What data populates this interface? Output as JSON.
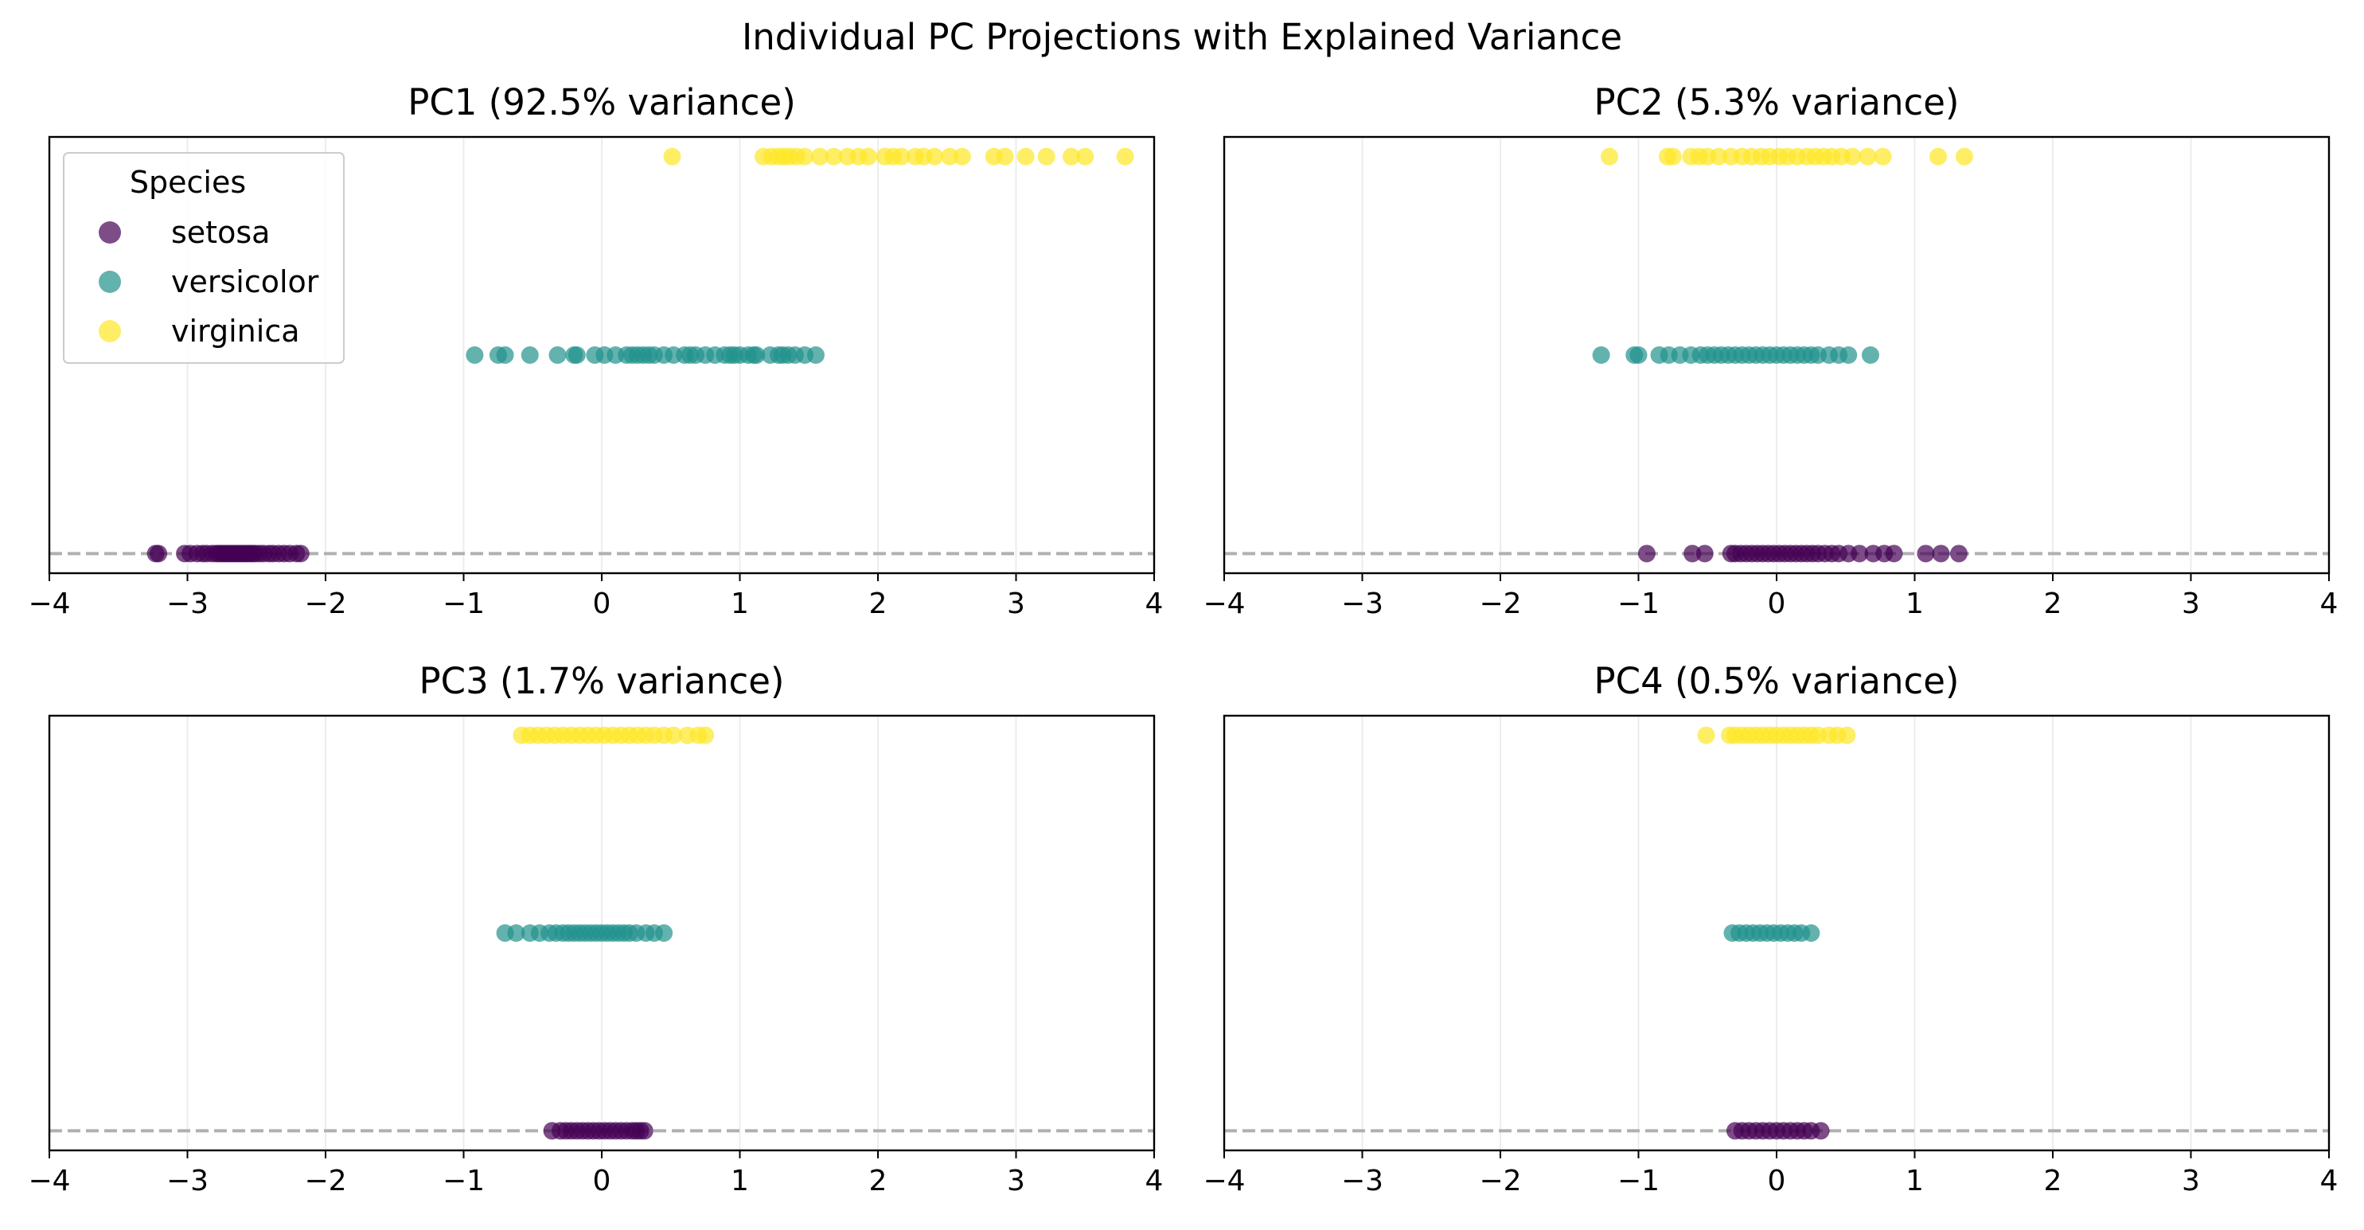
{
  "chart_data": {
    "suptitle": "Individual PC Projections with Explained Variance",
    "legend": {
      "title": "Species",
      "placement": "upper-left of first panel",
      "entries": [
        {
          "label": "setosa",
          "color": "#440154"
        },
        {
          "label": "versicolor",
          "color": "#21918c"
        },
        {
          "label": "virginica",
          "color": "#fde725"
        }
      ]
    },
    "panels": [
      {
        "type": "scatter",
        "title": "PC1 (92.5% variance)",
        "xlim": [
          -4,
          4
        ],
        "xticks": [
          -4,
          -3,
          -2,
          -1,
          0,
          1,
          2,
          3,
          4
        ],
        "grid": "vertical",
        "reference_line": "dashed horizontal line at setosa level",
        "series": [
          {
            "name": "setosa",
            "y": 0,
            "x": [
              -3.23,
              -3.21,
              -3.02,
              -2.98,
              -2.93,
              -2.89,
              -2.86,
              -2.82,
              -2.79,
              -2.77,
              -2.75,
              -2.73,
              -2.71,
              -2.69,
              -2.67,
              -2.65,
              -2.63,
              -2.61,
              -2.59,
              -2.57,
              -2.55,
              -2.53,
              -2.51,
              -2.48,
              -2.45,
              -2.41,
              -2.38,
              -2.34,
              -2.3,
              -2.26,
              -2.21,
              -2.18
            ]
          },
          {
            "name": "versicolor",
            "y": 1,
            "x": [
              -0.92,
              -0.75,
              -0.7,
              -0.52,
              -0.32,
              -0.2,
              -0.18,
              -0.05,
              0.02,
              0.1,
              0.18,
              0.22,
              0.26,
              0.3,
              0.34,
              0.38,
              0.45,
              0.52,
              0.6,
              0.64,
              0.68,
              0.75,
              0.82,
              0.89,
              0.93,
              0.96,
              1.0,
              1.06,
              1.1,
              1.12,
              1.22,
              1.28,
              1.31,
              1.35,
              1.4,
              1.47,
              1.55
            ]
          },
          {
            "name": "virginica",
            "y": 2,
            "x": [
              0.51,
              1.17,
              1.23,
              1.28,
              1.32,
              1.36,
              1.41,
              1.47,
              1.58,
              1.68,
              1.78,
              1.86,
              1.93,
              2.05,
              2.11,
              2.17,
              2.27,
              2.33,
              2.41,
              2.52,
              2.61,
              2.84,
              2.92,
              3.07,
              3.22,
              3.4,
              3.5,
              3.79
            ]
          }
        ]
      },
      {
        "type": "scatter",
        "title": "PC2 (5.3% variance)",
        "xlim": [
          -4,
          4
        ],
        "xticks": [
          -4,
          -3,
          -2,
          -1,
          0,
          1,
          2,
          3,
          4
        ],
        "grid": "vertical",
        "reference_line": "dashed horizontal line at setosa level",
        "series": [
          {
            "name": "setosa",
            "y": 0,
            "x": [
              -0.94,
              -0.61,
              -0.52,
              -0.33,
              -0.3,
              -0.26,
              -0.22,
              -0.18,
              -0.14,
              -0.1,
              -0.06,
              -0.02,
              0.02,
              0.06,
              0.1,
              0.14,
              0.18,
              0.22,
              0.26,
              0.3,
              0.35,
              0.4,
              0.45,
              0.52,
              0.6,
              0.7,
              0.78,
              0.85,
              1.08,
              1.19,
              1.32
            ]
          },
          {
            "name": "versicolor",
            "y": 1,
            "x": [
              -1.27,
              -1.03,
              -1.0,
              -0.85,
              -0.78,
              -0.7,
              -0.62,
              -0.55,
              -0.5,
              -0.45,
              -0.4,
              -0.35,
              -0.3,
              -0.25,
              -0.2,
              -0.15,
              -0.1,
              -0.05,
              0.0,
              0.05,
              0.1,
              0.15,
              0.2,
              0.25,
              0.3,
              0.38,
              0.45,
              0.52,
              0.68
            ]
          },
          {
            "name": "virginica",
            "y": 2,
            "x": [
              -1.21,
              -0.79,
              -0.75,
              -0.62,
              -0.56,
              -0.5,
              -0.42,
              -0.33,
              -0.25,
              -0.18,
              -0.11,
              -0.05,
              0.02,
              0.08,
              0.15,
              0.22,
              0.28,
              0.34,
              0.4,
              0.47,
              0.55,
              0.66,
              0.77,
              1.17,
              1.36
            ]
          }
        ]
      },
      {
        "type": "scatter",
        "title": "PC3 (1.7% variance)",
        "xlim": [
          -4,
          4
        ],
        "xticks": [
          -4,
          -3,
          -2,
          -1,
          0,
          1,
          2,
          3,
          4
        ],
        "grid": "vertical",
        "reference_line": "dashed horizontal line at setosa level",
        "series": [
          {
            "name": "setosa",
            "y": 0,
            "x": [
              -0.36,
              -0.3,
              -0.26,
              -0.22,
              -0.18,
              -0.14,
              -0.1,
              -0.06,
              -0.02,
              0.02,
              0.06,
              0.1,
              0.14,
              0.18,
              0.22,
              0.25,
              0.28,
              0.31
            ]
          },
          {
            "name": "versicolor",
            "y": 1,
            "x": [
              -0.7,
              -0.62,
              -0.52,
              -0.45,
              -0.38,
              -0.33,
              -0.28,
              -0.24,
              -0.2,
              -0.16,
              -0.12,
              -0.08,
              -0.04,
              0.0,
              0.04,
              0.08,
              0.12,
              0.16,
              0.2,
              0.25,
              0.32,
              0.38,
              0.45
            ]
          },
          {
            "name": "virginica",
            "y": 2,
            "x": [
              -0.58,
              -0.52,
              -0.46,
              -0.4,
              -0.34,
              -0.28,
              -0.22,
              -0.16,
              -0.1,
              -0.04,
              0.02,
              0.08,
              0.14,
              0.2,
              0.26,
              0.32,
              0.38,
              0.45,
              0.52,
              0.62,
              0.7,
              0.75
            ]
          }
        ]
      },
      {
        "type": "scatter",
        "title": "PC4 (0.5% variance)",
        "xlim": [
          -4,
          4
        ],
        "xticks": [
          -4,
          -3,
          -2,
          -1,
          0,
          1,
          2,
          3,
          4
        ],
        "grid": "vertical",
        "reference_line": "dashed horizontal line at setosa level",
        "series": [
          {
            "name": "setosa",
            "y": 0,
            "x": [
              -0.3,
              -0.25,
              -0.2,
              -0.15,
              -0.1,
              -0.05,
              0.0,
              0.05,
              0.1,
              0.15,
              0.2,
              0.25,
              0.32
            ]
          },
          {
            "name": "versicolor",
            "y": 1,
            "x": [
              -0.32,
              -0.27,
              -0.22,
              -0.17,
              -0.12,
              -0.07,
              -0.02,
              0.03,
              0.08,
              0.13,
              0.18,
              0.25
            ]
          },
          {
            "name": "virginica",
            "y": 2,
            "x": [
              -0.51,
              -0.34,
              -0.3,
              -0.25,
              -0.2,
              -0.15,
              -0.1,
              -0.05,
              0.0,
              0.05,
              0.1,
              0.15,
              0.2,
              0.25,
              0.3,
              0.38,
              0.44,
              0.51
            ]
          }
        ]
      }
    ]
  }
}
